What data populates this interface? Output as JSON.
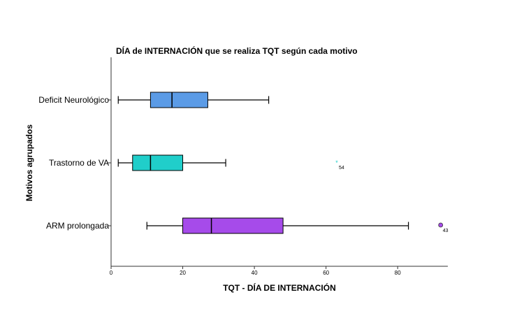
{
  "chart_data": {
    "type": "boxplot",
    "orientation": "horizontal",
    "title": "DÍA de INTERNACIÓN que se realiza TQT según cada motivo",
    "xlabel": "TQT - DÍA DE INTERNACIÓN",
    "ylabel": "Motivos agrupados",
    "xlim": [
      0,
      94
    ],
    "xticks": [
      0,
      20,
      40,
      60,
      80
    ],
    "grid": false,
    "categories": [
      {
        "label": "Deficit Neurológico",
        "color": "#5B9BE6",
        "whisker_low": 2,
        "q1": 11,
        "median": 17,
        "q3": 27,
        "whisker_high": 44,
        "outliers": []
      },
      {
        "label": "Trastorno de VA",
        "color": "#20CECA",
        "whisker_low": 2,
        "q1": 6,
        "median": 11,
        "q3": 20,
        "whisker_high": 32,
        "outliers": [
          {
            "value": 63,
            "label": "54",
            "marker": "asterisk"
          }
        ]
      },
      {
        "label": "ARM prolongada",
        "color": "#A64BEA",
        "whisker_low": 10,
        "q1": 20,
        "median": 28,
        "q3": 48,
        "whisker_high": 83,
        "outliers": [
          {
            "value": 92,
            "label": "43",
            "marker": "circle"
          }
        ]
      }
    ]
  }
}
